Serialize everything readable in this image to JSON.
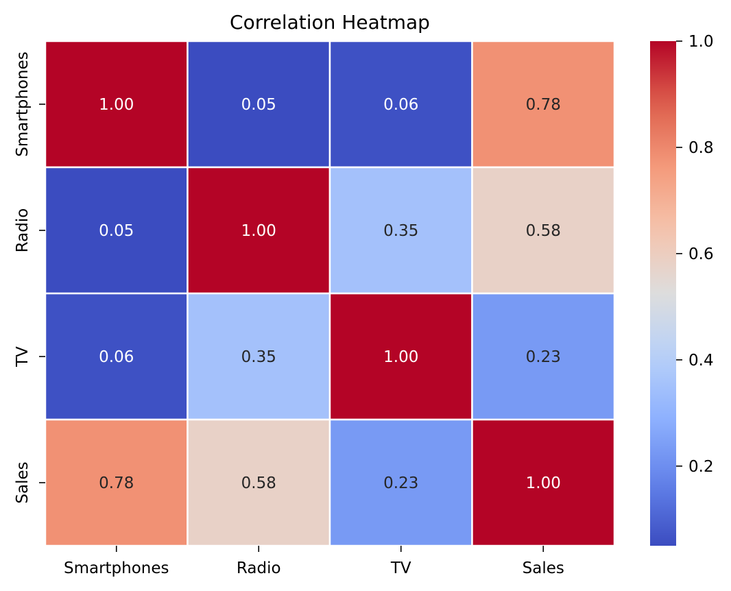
{
  "chart_data": {
    "type": "heatmap",
    "title": "Correlation Heatmap",
    "xlabel": "",
    "ylabel": "",
    "x_categories": [
      "Smartphones",
      "Radio",
      "TV",
      "Sales"
    ],
    "y_categories": [
      "Smartphones",
      "Radio",
      "TV",
      "Sales"
    ],
    "values": [
      [
        1.0,
        0.05,
        0.06,
        0.78
      ],
      [
        0.05,
        1.0,
        0.35,
        0.58
      ],
      [
        0.06,
        0.35,
        1.0,
        0.23
      ],
      [
        0.78,
        0.58,
        0.23,
        1.0
      ]
    ],
    "labels": [
      [
        "1.00",
        "0.05",
        "0.06",
        "0.78"
      ],
      [
        "0.05",
        "1.00",
        "0.35",
        "0.58"
      ],
      [
        "0.06",
        "0.35",
        "1.00",
        "0.23"
      ],
      [
        "0.78",
        "0.58",
        "0.23",
        "1.00"
      ]
    ],
    "colormap": "coolwarm",
    "color_range": [
      0.05,
      1.0
    ],
    "colorbar_ticks": [
      0.2,
      0.4,
      0.6,
      0.8,
      1.0
    ],
    "colorbar_tick_labels": [
      "0.2",
      "0.4",
      "0.6",
      "0.8",
      "1.0"
    ],
    "colorbar_placement": "right",
    "cell_border_color": "#ffffff",
    "low_color": "#3b4cc0",
    "mid_color": "#dddddd",
    "high_color": "#b40426"
  }
}
